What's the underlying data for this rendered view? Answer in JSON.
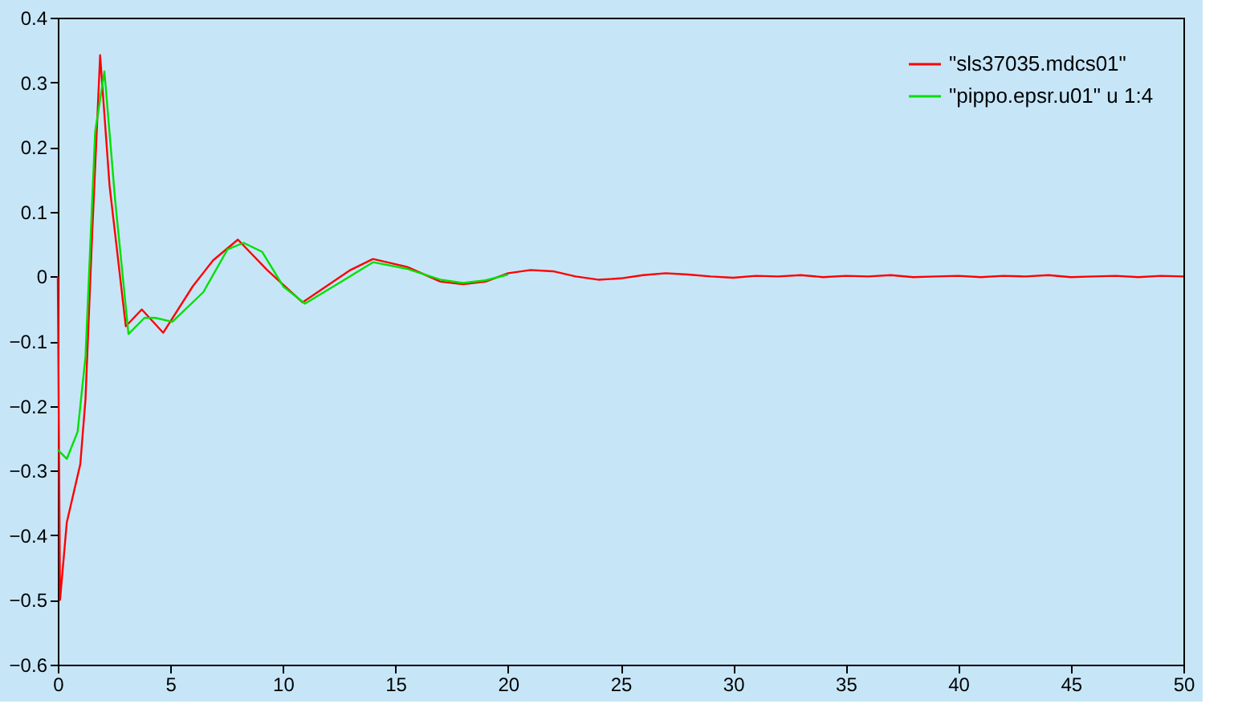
{
  "chart_data": {
    "type": "line",
    "xlim": [
      0,
      50
    ],
    "ylim": [
      -0.6,
      0.4
    ],
    "xticks": [
      0,
      5,
      10,
      15,
      20,
      25,
      30,
      35,
      40,
      45,
      50
    ],
    "yticks": [
      -0.6,
      -0.5,
      -0.4,
      -0.3,
      -0.2,
      -0.1,
      0,
      0.1,
      0.2,
      0.3,
      0.4
    ],
    "grid": false,
    "legend": "top right",
    "marker": "none",
    "line_style": "solid",
    "series": [
      {
        "name": "\"sls37035.mdcs01\"",
        "color": "#ff0000",
        "x": [
          0,
          0.1,
          0.4,
          1.0,
          1.23,
          1.52,
          1.88,
          2.3,
          3.02,
          3.73,
          4.68,
          6.0,
          6.9,
          8.0,
          9.3,
          10.87,
          13.0,
          14.0,
          15.5,
          17,
          18,
          19,
          20,
          21,
          22,
          23,
          24,
          25,
          26,
          27,
          28,
          29,
          30,
          31,
          32,
          33,
          34,
          35,
          36,
          37,
          38,
          39,
          40,
          41,
          42,
          43,
          44,
          45,
          46,
          47,
          48,
          49,
          50
        ],
        "values": [
          0,
          -0.5,
          -0.38,
          -0.29,
          -0.19,
          0.06,
          0.342,
          0.14,
          -0.077,
          -0.051,
          -0.087,
          -0.015,
          0.025,
          0.057,
          0.01,
          -0.04,
          0.01,
          0.027,
          0.015,
          -0.008,
          -0.012,
          -0.008,
          0.005,
          0.01,
          0.008,
          0.0,
          -0.005,
          -0.003,
          0.002,
          0.005,
          0.003,
          0.0,
          -0.002,
          0.001,
          0.0,
          0.002,
          -0.001,
          0.001,
          0.0,
          0.002,
          -0.001,
          0.0,
          0.001,
          -0.001,
          0.001,
          0.0,
          0.002,
          -0.001,
          0.0,
          0.001,
          -0.001,
          0.001,
          0.0
        ]
      },
      {
        "name": "\"pippo.epsr.u01\" u 1:4",
        "color": "#00e000",
        "x": [
          0,
          0.4,
          0.88,
          1.23,
          1.66,
          2.07,
          2.55,
          3.14,
          3.85,
          4.33,
          5.09,
          6.47,
          7.54,
          8.25,
          9.08,
          10.03,
          10.98,
          12.5,
          14.0,
          15.5,
          17,
          18,
          19,
          20
        ],
        "values": [
          -0.268,
          -0.282,
          -0.24,
          -0.124,
          0.224,
          0.317,
          0.117,
          -0.089,
          -0.064,
          -0.064,
          -0.07,
          -0.024,
          0.042,
          0.052,
          0.038,
          -0.016,
          -0.042,
          -0.01,
          0.022,
          0.012,
          -0.005,
          -0.01,
          -0.006,
          0.003
        ]
      }
    ]
  }
}
